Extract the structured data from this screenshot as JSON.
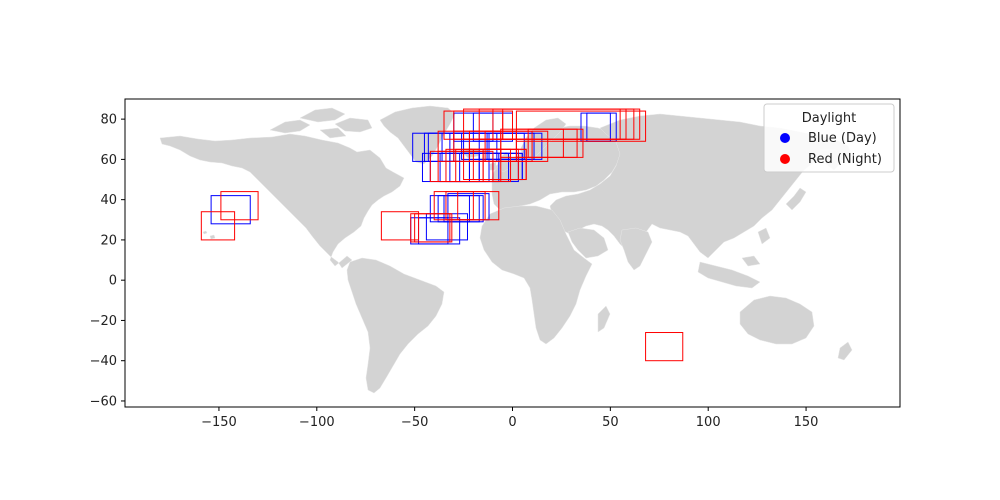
{
  "chart_data": {
    "type": "scatter",
    "title": "",
    "xlabel": "",
    "ylabel": "",
    "xlim": [
      -198,
      198
    ],
    "ylim": [
      -63,
      90
    ],
    "x_ticks": [
      -150,
      -100,
      -50,
      0,
      50,
      100,
      150
    ],
    "y_ticks": [
      -60,
      -40,
      -20,
      0,
      20,
      40,
      60,
      80
    ],
    "x_tick_labels": [
      "−150",
      "−100",
      "−50",
      "0",
      "50",
      "100",
      "150"
    ],
    "y_tick_labels": [
      "−60",
      "−40",
      "−20",
      "0",
      "20",
      "40",
      "60",
      "80"
    ],
    "grid": false,
    "basemap": "world land polygons",
    "land_color": "#d3d3d3",
    "legend": {
      "title": "Daylight",
      "placement": "top-right",
      "entries": [
        {
          "label": "Blue (Day)",
          "color": "#0000ff"
        },
        {
          "label": "Red (Night)",
          "color": "#ff0000"
        }
      ]
    },
    "series": [
      {
        "name": "Blue (Day)",
        "color": "#0000ff",
        "boxes": [
          {
            "lon_min": -154,
            "lon_max": -134,
            "lat_min": 28,
            "lat_max": 42
          },
          {
            "lon_min": -52,
            "lon_max": -33,
            "lat_min": 18,
            "lat_max": 31
          },
          {
            "lon_min": -48,
            "lon_max": -27,
            "lat_min": 18,
            "lat_max": 31
          },
          {
            "lon_min": -44,
            "lon_max": -23,
            "lat_min": 20,
            "lat_max": 33
          },
          {
            "lon_min": -42,
            "lon_max": -22,
            "lat_min": 29,
            "lat_max": 42
          },
          {
            "lon_min": -38,
            "lon_max": -17,
            "lat_min": 29,
            "lat_max": 42
          },
          {
            "lon_min": -35,
            "lon_max": -15,
            "lat_min": 29,
            "lat_max": 42
          },
          {
            "lon_min": -33,
            "lon_max": -12,
            "lat_min": 30,
            "lat_max": 43
          },
          {
            "lon_min": -51,
            "lon_max": -30,
            "lat_min": 59,
            "lat_max": 73
          },
          {
            "lon_min": -45,
            "lon_max": -25,
            "lat_min": 59,
            "lat_max": 73
          },
          {
            "lon_min": -43,
            "lon_max": -22,
            "lat_min": 59,
            "lat_max": 73
          },
          {
            "lon_min": -36,
            "lon_max": -12,
            "lat_min": 59,
            "lat_max": 73
          },
          {
            "lon_min": -32,
            "lon_max": -8,
            "lat_min": 59,
            "lat_max": 73
          },
          {
            "lon_min": -26,
            "lon_max": 2,
            "lat_min": 60,
            "lat_max": 73
          },
          {
            "lon_min": -22,
            "lon_max": 6,
            "lat_min": 60,
            "lat_max": 73
          },
          {
            "lon_min": -17,
            "lon_max": 11,
            "lat_min": 60,
            "lat_max": 73
          },
          {
            "lon_min": -13,
            "lon_max": 15,
            "lat_min": 60,
            "lat_max": 73
          },
          {
            "lon_min": -46,
            "lon_max": -22,
            "lat_min": 49,
            "lat_max": 63
          },
          {
            "lon_min": -42,
            "lon_max": -17,
            "lat_min": 49,
            "lat_max": 63
          },
          {
            "lon_min": -37,
            "lon_max": -12,
            "lat_min": 49,
            "lat_max": 63
          },
          {
            "lon_min": -32,
            "lon_max": -7,
            "lat_min": 49,
            "lat_max": 63
          },
          {
            "lon_min": -27,
            "lon_max": -2,
            "lat_min": 49,
            "lat_max": 63
          },
          {
            "lon_min": -22,
            "lon_max": 3,
            "lat_min": 49,
            "lat_max": 63
          },
          {
            "lon_min": -17,
            "lon_max": 5,
            "lat_min": 50,
            "lat_max": 63
          },
          {
            "lon_min": -10,
            "lon_max": 5,
            "lat_min": 50,
            "lat_max": 63
          },
          {
            "lon_min": -30,
            "lon_max": -10,
            "lat_min": 69,
            "lat_max": 83
          },
          {
            "lon_min": -20,
            "lon_max": 0,
            "lat_min": 69,
            "lat_max": 83
          },
          {
            "lon_min": 35,
            "lon_max": 50,
            "lat_min": 69,
            "lat_max": 83
          },
          {
            "lon_min": 38,
            "lon_max": 53,
            "lat_min": 69,
            "lat_max": 83
          }
        ]
      },
      {
        "name": "Red (Night)",
        "color": "#ff0000",
        "boxes": [
          {
            "lon_min": -149,
            "lon_max": -130,
            "lat_min": 30,
            "lat_max": 44
          },
          {
            "lon_min": -159,
            "lon_max": -142,
            "lat_min": 20,
            "lat_max": 34
          },
          {
            "lon_min": -67,
            "lon_max": -48,
            "lat_min": 20,
            "lat_max": 34
          },
          {
            "lon_min": -52,
            "lon_max": -32,
            "lat_min": 19,
            "lat_max": 33
          },
          {
            "lon_min": -50,
            "lon_max": -31,
            "lat_min": 19,
            "lat_max": 33
          },
          {
            "lon_min": -40,
            "lon_max": -20,
            "lat_min": 30,
            "lat_max": 44
          },
          {
            "lon_min": -34,
            "lon_max": -14,
            "lat_min": 30,
            "lat_max": 44
          },
          {
            "lon_min": -28,
            "lon_max": -7,
            "lat_min": 30,
            "lat_max": 44
          },
          {
            "lon_min": -42,
            "lon_max": -15,
            "lat_min": 49,
            "lat_max": 64
          },
          {
            "lon_min": -38,
            "lon_max": -10,
            "lat_min": 49,
            "lat_max": 64
          },
          {
            "lon_min": -34,
            "lon_max": -6,
            "lat_min": 49,
            "lat_max": 65
          },
          {
            "lon_min": -29,
            "lon_max": -1,
            "lat_min": 49,
            "lat_max": 65
          },
          {
            "lon_min": -25,
            "lon_max": 3,
            "lat_min": 50,
            "lat_max": 65
          },
          {
            "lon_min": -20,
            "lon_max": 7,
            "lat_min": 50,
            "lat_max": 65
          },
          {
            "lon_min": -15,
            "lon_max": 7,
            "lat_min": 50,
            "lat_max": 65
          },
          {
            "lon_min": -38,
            "lon_max": -6,
            "lat_min": 59,
            "lat_max": 74
          },
          {
            "lon_min": -30,
            "lon_max": 2,
            "lat_min": 59,
            "lat_max": 74
          },
          {
            "lon_min": -22,
            "lon_max": 10,
            "lat_min": 59,
            "lat_max": 74
          },
          {
            "lon_min": -14,
            "lon_max": 18,
            "lat_min": 59,
            "lat_max": 74
          },
          {
            "lon_min": -6,
            "lon_max": 26,
            "lat_min": 61,
            "lat_max": 75
          },
          {
            "lon_min": 2,
            "lon_max": 33,
            "lat_min": 61,
            "lat_max": 75
          },
          {
            "lon_min": 8,
            "lon_max": 36,
            "lat_min": 61,
            "lat_max": 75
          },
          {
            "lon_min": -35,
            "lon_max": -5,
            "lat_min": 70,
            "lat_max": 84
          },
          {
            "lon_min": -30,
            "lon_max": 0,
            "lat_min": 70,
            "lat_max": 84
          },
          {
            "lon_min": -25,
            "lon_max": 55,
            "lat_min": 70,
            "lat_max": 85
          },
          {
            "lon_min": -17,
            "lon_max": 58,
            "lat_min": 70,
            "lat_max": 85
          },
          {
            "lon_min": -10,
            "lon_max": 62,
            "lat_min": 70,
            "lat_max": 85
          },
          {
            "lon_min": -5,
            "lon_max": 65,
            "lat_min": 70,
            "lat_max": 85
          },
          {
            "lon_min": 2,
            "lon_max": 68,
            "lat_min": 69,
            "lat_max": 84
          },
          {
            "lon_min": 68,
            "lon_max": 87,
            "lat_min": -40,
            "lat_max": -26
          }
        ]
      }
    ]
  }
}
